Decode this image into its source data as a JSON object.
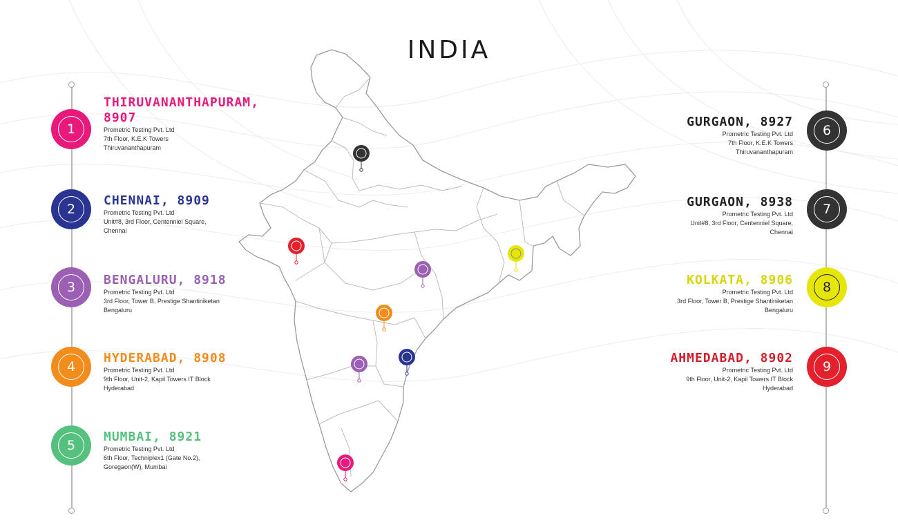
{
  "title": "INDIA",
  "colors": {
    "pink": "#e8197a",
    "navy": "#2a3592",
    "purple": "#9b5fb3",
    "orange": "#f28c1c",
    "green": "#56c17f",
    "charcoal": "#333333",
    "yellow": "#e6e60a",
    "red": "#e3202b"
  },
  "locations_left": [
    {
      "number": "1",
      "city_line1": "THIRUVANANTHAPURAM,",
      "city_line2": "8907",
      "line1": "Prometric Testing Pvt. Ltd",
      "line2": "7th Floor, K.E.K Towers",
      "line3": "Thiruvananthapuram",
      "color": "#e8197a"
    },
    {
      "number": "2",
      "city_line1": "CHENNAI, 8909",
      "line1": "Prometric Testing Pvt. Ltd",
      "line2": "Unit#8, 3rd Floor, Centenniel Square,",
      "line3": "Chennai",
      "color": "#2a3592"
    },
    {
      "number": "3",
      "city_line1": "BENGALURU, 8918",
      "line1": "Prometric Testing Pvt. Ltd",
      "line2": "3rd Floor, Tower B, Prestige Shantiniketan",
      "line3": "Bengaluru",
      "color": "#9b5fb3"
    },
    {
      "number": "4",
      "city_line1": "HYDERABAD, 8908",
      "line1": "Prometric Testing Pvt. Ltd",
      "line2": "9th Floor, Unit-2, Kapil Towers IT Block",
      "line3": "Hyderabad",
      "color": "#f28c1c"
    },
    {
      "number": "5",
      "city_line1": "MUMBAI, 8921",
      "line1": "Prometric Testing Pvt. Ltd",
      "line2": "6th Floor, Techniplex1 (Gate No.2),",
      "line3": "Goregaon(W), Mumbai",
      "color": "#56c17f"
    }
  ],
  "locations_right": [
    {
      "number": "6",
      "city_line1": "GURGAON, 8927",
      "line1": "Prometric Testing Pvt. Ltd",
      "line2": "7th Floor, K.E.K Towers",
      "line3": "Thiruvananthapuram",
      "color": "#333333",
      "city_color": "#222222"
    },
    {
      "number": "7",
      "city_line1": "GURGAON, 8938",
      "line1": "Prometric Testing Pvt. Ltd",
      "line2": "Unit#8, 3rd Floor, Centenniel Square,",
      "line3": "Chennai",
      "color": "#333333",
      "city_color": "#222222"
    },
    {
      "number": "8",
      "city_line1": "KOLKATA, 8906",
      "line1": "Prometric Testing Pvt. Ltd",
      "line2": "3rd Floor, Tower B, Prestige Shantiniketan",
      "line3": "Bengaluru",
      "color": "#e6e60a",
      "city_color": "#d6d60a"
    },
    {
      "number": "9",
      "city_line1": "AHMEDABAD, 8902",
      "line1": "Prometric Testing Pvt. Ltd",
      "line2": "9th Floor, Unit-2, Kapil Towers IT Block",
      "line3": "Hyderabad",
      "color": "#e3202b",
      "city_color": "#d31f2a"
    }
  ],
  "map_pins": [
    {
      "name": "gurgaon-pin",
      "color": "#333333"
    },
    {
      "name": "ahmedabad-pin",
      "color": "#e3202b"
    },
    {
      "name": "kolkata-pin",
      "color": "#e6e60a"
    },
    {
      "name": "central-pin",
      "color": "#9b5fb3"
    },
    {
      "name": "hyderabad-pin",
      "color": "#f28c1c"
    },
    {
      "name": "bengaluru-pin",
      "color": "#9b5fb3"
    },
    {
      "name": "chennai-pin",
      "color": "#2a3592"
    },
    {
      "name": "thiruvananthapuram-pin",
      "color": "#e8197a"
    }
  ]
}
